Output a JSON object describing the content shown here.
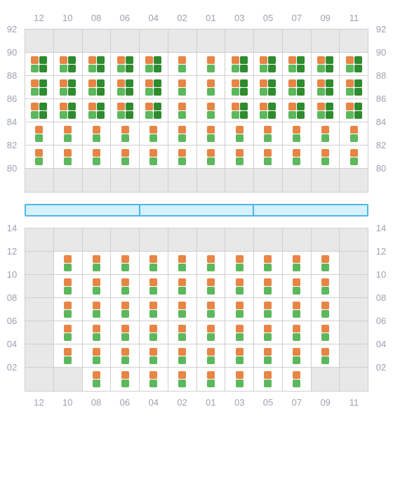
{
  "columns": [
    "12",
    "10",
    "08",
    "06",
    "04",
    "02",
    "01",
    "03",
    "05",
    "07",
    "09",
    "11"
  ],
  "top": {
    "row_border_labels": [
      "92",
      "90",
      "88",
      "86",
      "84",
      "82",
      "80"
    ],
    "rows": [
      {
        "r": "90",
        "cells": [
          {
            "t": "quad"
          },
          {
            "t": "quad"
          },
          {
            "t": "quad"
          },
          {
            "t": "quad"
          },
          {
            "t": "quad"
          },
          {
            "t": "pair"
          },
          {
            "t": "pair"
          },
          {
            "t": "quad"
          },
          {
            "t": "quad"
          },
          {
            "t": "quad"
          },
          {
            "t": "quad"
          },
          {
            "t": "quad"
          }
        ]
      },
      {
        "r": "88",
        "cells": [
          {
            "t": "quad"
          },
          {
            "t": "quad"
          },
          {
            "t": "quad"
          },
          {
            "t": "quad"
          },
          {
            "t": "quad"
          },
          {
            "t": "pair"
          },
          {
            "t": "pair"
          },
          {
            "t": "quad"
          },
          {
            "t": "quad"
          },
          {
            "t": "quad"
          },
          {
            "t": "quad"
          },
          {
            "t": "quad"
          }
        ]
      },
      {
        "r": "86",
        "cells": [
          {
            "t": "quad"
          },
          {
            "t": "quad"
          },
          {
            "t": "quad"
          },
          {
            "t": "quad"
          },
          {
            "t": "quad"
          },
          {
            "t": "pair"
          },
          {
            "t": "pair"
          },
          {
            "t": "quad"
          },
          {
            "t": "quad"
          },
          {
            "t": "quad"
          },
          {
            "t": "quad"
          },
          {
            "t": "quad"
          }
        ]
      },
      {
        "r": "84",
        "cells": [
          {
            "t": "pair"
          },
          {
            "t": "pair"
          },
          {
            "t": "pair"
          },
          {
            "t": "pair"
          },
          {
            "t": "pair"
          },
          {
            "t": "pair"
          },
          {
            "t": "pair"
          },
          {
            "t": "pair"
          },
          {
            "t": "pair"
          },
          {
            "t": "pair"
          },
          {
            "t": "pair"
          },
          {
            "t": "pair"
          }
        ]
      },
      {
        "r": "82",
        "cells": [
          {
            "t": "pair"
          },
          {
            "t": "pair"
          },
          {
            "t": "pair"
          },
          {
            "t": "pair"
          },
          {
            "t": "pair"
          },
          {
            "t": "pair"
          },
          {
            "t": "pair"
          },
          {
            "t": "pair"
          },
          {
            "t": "pair"
          },
          {
            "t": "pair"
          },
          {
            "t": "pair"
          },
          {
            "t": "pair"
          }
        ]
      }
    ]
  },
  "bottom": {
    "row_border_labels": [
      "14",
      "12",
      "10",
      "08",
      "06",
      "04",
      "02"
    ],
    "rows": [
      {
        "r": "12",
        "cells": [
          {
            "t": ""
          },
          {
            "t": "pair"
          },
          {
            "t": "pair"
          },
          {
            "t": "pair"
          },
          {
            "t": "pair"
          },
          {
            "t": "pair"
          },
          {
            "t": "pair"
          },
          {
            "t": "pair"
          },
          {
            "t": "pair"
          },
          {
            "t": "pair"
          },
          {
            "t": "pair"
          },
          {
            "t": ""
          }
        ]
      },
      {
        "r": "10",
        "cells": [
          {
            "t": ""
          },
          {
            "t": "pair"
          },
          {
            "t": "pair"
          },
          {
            "t": "pair"
          },
          {
            "t": "pair"
          },
          {
            "t": "pair"
          },
          {
            "t": "pair"
          },
          {
            "t": "pair"
          },
          {
            "t": "pair"
          },
          {
            "t": "pair"
          },
          {
            "t": "pair"
          },
          {
            "t": ""
          }
        ]
      },
      {
        "r": "08",
        "cells": [
          {
            "t": ""
          },
          {
            "t": "pair"
          },
          {
            "t": "pair"
          },
          {
            "t": "pair"
          },
          {
            "t": "pair"
          },
          {
            "t": "pair"
          },
          {
            "t": "pair"
          },
          {
            "t": "pair"
          },
          {
            "t": "pair"
          },
          {
            "t": "pair"
          },
          {
            "t": "pair"
          },
          {
            "t": ""
          }
        ]
      },
      {
        "r": "06",
        "cells": [
          {
            "t": ""
          },
          {
            "t": "pair"
          },
          {
            "t": "pair"
          },
          {
            "t": "pair"
          },
          {
            "t": "pair"
          },
          {
            "t": "pair"
          },
          {
            "t": "pair"
          },
          {
            "t": "pair"
          },
          {
            "t": "pair"
          },
          {
            "t": "pair"
          },
          {
            "t": "pair"
          },
          {
            "t": ""
          }
        ]
      },
      {
        "r": "04",
        "cells": [
          {
            "t": ""
          },
          {
            "t": "pair"
          },
          {
            "t": "pair"
          },
          {
            "t": "pair"
          },
          {
            "t": "pair"
          },
          {
            "t": "pair"
          },
          {
            "t": "pair"
          },
          {
            "t": "pair"
          },
          {
            "t": "pair"
          },
          {
            "t": "pair"
          },
          {
            "t": "pair"
          },
          {
            "t": ""
          }
        ]
      },
      {
        "r": "02",
        "cells": [
          {
            "t": ""
          },
          {
            "t": ""
          },
          {
            "t": "pair"
          },
          {
            "t": "pair"
          },
          {
            "t": "pair"
          },
          {
            "t": "pair"
          },
          {
            "t": "pair"
          },
          {
            "t": "pair"
          },
          {
            "t": "pair"
          },
          {
            "t": "pair"
          },
          {
            "t": ""
          },
          {
            "t": ""
          }
        ]
      }
    ]
  },
  "mid_segments": 3,
  "colors": {
    "orange": "#e88545",
    "green": "#5cb85c",
    "dark_green": "#2e8b2e",
    "grid_bg": "#e8e8e8",
    "grid_border": "#cfcfcf",
    "cell_on": "#ffffff",
    "label": "#9ba3ad",
    "mid_border": "#4fb6e8",
    "mid_fill": "#d6f0fc"
  }
}
